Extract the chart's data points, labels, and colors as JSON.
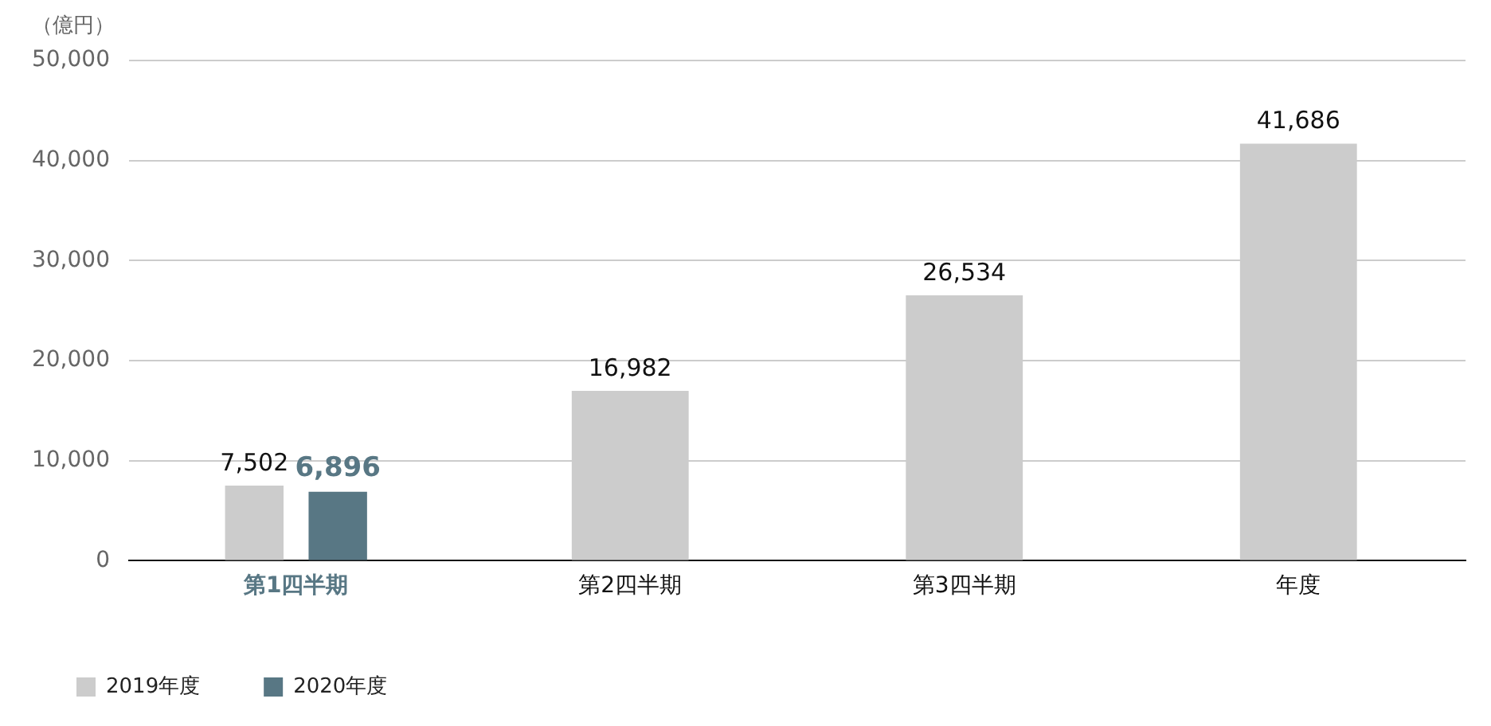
{
  "chart_data": {
    "type": "bar",
    "ylabel": "（億円）",
    "categories": [
      "第1四半期",
      "第2四半期",
      "第3四半期",
      "年度"
    ],
    "series": [
      {
        "name": "2019年度",
        "color": "#cccccc",
        "values": [
          7502,
          16982,
          26534,
          41686
        ],
        "value_labels": [
          "7,502",
          "16,982",
          "26,534",
          "41,686"
        ]
      },
      {
        "name": "2020年度",
        "color": "#587784",
        "values": [
          6896,
          null,
          null,
          null
        ],
        "value_labels": [
          "6,896",
          null,
          null,
          null
        ]
      }
    ],
    "ylim": [
      0,
      50000
    ],
    "yticks": [
      0,
      {
        "value": 10000,
        "label": "10,000"
      },
      {
        "value": 20000,
        "label": "20,000"
      },
      {
        "value": 30000,
        "label": "30,000"
      },
      {
        "value": 40000,
        "label": "40,000"
      },
      {
        "value": 50000,
        "label": "50,000"
      }
    ],
    "grid": "y",
    "legend": "bottom left"
  }
}
